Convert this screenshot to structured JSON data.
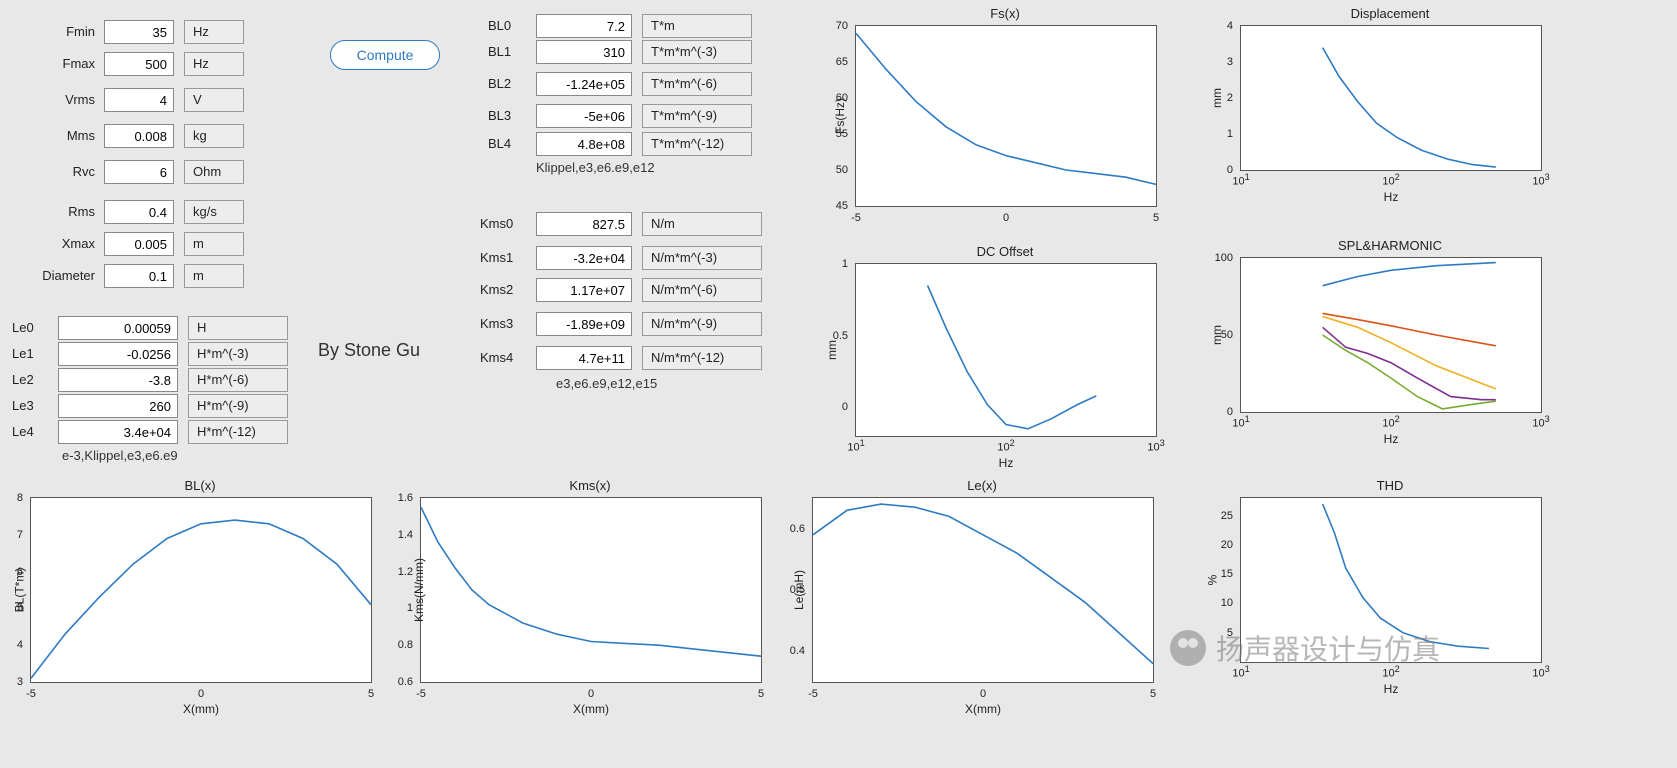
{
  "colors": {
    "line": "#2e7bc4",
    "bg": "#e8e8e8",
    "plotbg": "#ffffff",
    "axis": "#555",
    "grid": "#e0e0e0"
  },
  "compute_label": "Compute",
  "byline": "By  Stone Gu",
  "watermark": "扬声器设计与仿真",
  "params_basic": [
    {
      "label": "Fmin",
      "value": "35",
      "unit": "Hz"
    },
    {
      "label": "Fmax",
      "value": "500",
      "unit": "Hz"
    },
    {
      "label": "Vrms",
      "value": "4",
      "unit": "V"
    },
    {
      "label": "Mms",
      "value": "0.008",
      "unit": "kg"
    },
    {
      "label": "Rvc",
      "value": "6",
      "unit": "Ohm"
    },
    {
      "label": "Rms",
      "value": "0.4",
      "unit": "kg/s"
    },
    {
      "label": "Xmax",
      "value": "0.005",
      "unit": "m"
    },
    {
      "label": "Diameter",
      "value": "0.1",
      "unit": "m"
    }
  ],
  "params_le": [
    {
      "label": "Le0",
      "value": "0.00059",
      "unit": "H"
    },
    {
      "label": "Le1",
      "value": "-0.0256",
      "unit": "H*m^(-3)"
    },
    {
      "label": "Le2",
      "value": "-3.8",
      "unit": "H*m^(-6)"
    },
    {
      "label": "Le3",
      "value": "260",
      "unit": "H*m^(-9)"
    },
    {
      "label": "Le4",
      "value": "3.4e+04",
      "unit": "H*m^(-12)"
    }
  ],
  "note_le": "e-3,Klippel,e3,e6.e9",
  "params_bl": [
    {
      "label": "BL0",
      "value": "7.2",
      "unit": "T*m"
    },
    {
      "label": "BL1",
      "value": "310",
      "unit": "T*m*m^(-3)"
    },
    {
      "label": "BL2",
      "value": "-1.24e+05",
      "unit": "T*m*m^(-6)"
    },
    {
      "label": "BL3",
      "value": "-5e+06",
      "unit": "T*m*m^(-9)"
    },
    {
      "label": "BL4",
      "value": "4.8e+08",
      "unit": "T*m*m^(-12)"
    }
  ],
  "note_bl": "Klippel,e3,e6.e9,e12",
  "params_kms": [
    {
      "label": "Kms0",
      "value": "827.5",
      "unit": "N/m"
    },
    {
      "label": "Kms1",
      "value": "-3.2e+04",
      "unit": "N/m*m^(-3)"
    },
    {
      "label": "Kms2",
      "value": "1.17e+07",
      "unit": "N/m*m^(-6)"
    },
    {
      "label": "Kms3",
      "value": "-1.89e+09",
      "unit": "N/m*m^(-9)"
    },
    {
      "label": "Kms4",
      "value": "4.7e+11",
      "unit": "N/m*m^(-12)"
    }
  ],
  "note_kms": "e3,e6.e9,e12,e15",
  "plots": {
    "fsx": {
      "title": "Fs(x)",
      "xlabel": "",
      "ylabel": "Fs(Hz)",
      "xlim": [
        -5,
        5
      ],
      "ylim": [
        45,
        70
      ],
      "xticks": [
        -5,
        0,
        5
      ],
      "yticks": [
        45,
        50,
        55,
        60,
        65,
        70
      ],
      "series": [
        {
          "color": "#2e7bc4",
          "pts": [
            [
              -5,
              69
            ],
            [
              -4,
              64
            ],
            [
              -3,
              59.5
            ],
            [
              -2,
              56
            ],
            [
              -1,
              53.5
            ],
            [
              0,
              52
            ],
            [
              1,
              51
            ],
            [
              2,
              50
            ],
            [
              3,
              49.5
            ],
            [
              4,
              49
            ],
            [
              5,
              48
            ]
          ]
        }
      ]
    },
    "disp": {
      "title": "Displacement",
      "xlabel": "Hz",
      "ylabel": "mm",
      "xscale": "log",
      "xlim": [
        10,
        1000
      ],
      "ylim": [
        0,
        4
      ],
      "xticks": [
        10,
        100,
        1000
      ],
      "xticklabels": [
        "10^1",
        "10^2",
        "10^3"
      ],
      "yticks": [
        0,
        1,
        2,
        3,
        4
      ],
      "series": [
        {
          "color": "#2e7bc4",
          "pts": [
            [
              35,
              3.4
            ],
            [
              45,
              2.6
            ],
            [
              60,
              1.9
            ],
            [
              80,
              1.3
            ],
            [
              110,
              0.9
            ],
            [
              160,
              0.55
            ],
            [
              240,
              0.3
            ],
            [
              350,
              0.15
            ],
            [
              500,
              0.08
            ]
          ]
        }
      ]
    },
    "dcoff": {
      "title": "DC Offset",
      "xlabel": "Hz",
      "ylabel": "mm",
      "xscale": "log",
      "xlim": [
        10,
        1000
      ],
      "ylim": [
        -0.2,
        1
      ],
      "xticks": [
        10,
        100,
        1000
      ],
      "xticklabels": [
        "10^1",
        "10^2",
        "10^3"
      ],
      "yticks": [
        0,
        0.5,
        1
      ],
      "series": [
        {
          "color": "#2e7bc4",
          "pts": [
            [
              30,
              0.85
            ],
            [
              40,
              0.55
            ],
            [
              55,
              0.25
            ],
            [
              75,
              0.02
            ],
            [
              100,
              -0.12
            ],
            [
              140,
              -0.15
            ],
            [
              200,
              -0.08
            ],
            [
              300,
              0.02
            ],
            [
              400,
              0.08
            ]
          ]
        }
      ]
    },
    "splh": {
      "title": "SPL&HARMONIC",
      "xlabel": "Hz",
      "ylabel": "mm",
      "xscale": "log",
      "xlim": [
        10,
        1000
      ],
      "ylim": [
        0,
        100
      ],
      "xticks": [
        10,
        100,
        1000
      ],
      "xticklabels": [
        "10^1",
        "10^2",
        "10^3"
      ],
      "yticks": [
        0,
        50,
        100
      ],
      "series": [
        {
          "color": "#2e7bc4",
          "pts": [
            [
              35,
              82
            ],
            [
              60,
              88
            ],
            [
              100,
              92
            ],
            [
              200,
              95
            ],
            [
              500,
              97
            ]
          ]
        },
        {
          "color": "#d95319",
          "pts": [
            [
              35,
              64
            ],
            [
              60,
              60
            ],
            [
              100,
              56
            ],
            [
              200,
              50
            ],
            [
              500,
              43
            ]
          ]
        },
        {
          "color": "#edb120",
          "pts": [
            [
              35,
              62
            ],
            [
              60,
              55
            ],
            [
              100,
              45
            ],
            [
              200,
              30
            ],
            [
              500,
              15
            ]
          ]
        },
        {
          "color": "#7e2f8e",
          "pts": [
            [
              35,
              55
            ],
            [
              50,
              42
            ],
            [
              70,
              38
            ],
            [
              100,
              32
            ],
            [
              150,
              22
            ],
            [
              250,
              10
            ],
            [
              400,
              8
            ],
            [
              500,
              8
            ]
          ]
        },
        {
          "color": "#77ac30",
          "pts": [
            [
              35,
              50
            ],
            [
              50,
              40
            ],
            [
              70,
              32
            ],
            [
              100,
              22
            ],
            [
              150,
              10
            ],
            [
              220,
              2
            ],
            [
              350,
              5
            ],
            [
              500,
              7
            ]
          ]
        }
      ]
    },
    "blx": {
      "title": "BL(x)",
      "xlabel": "X(mm)",
      "ylabel": "BL(T*m)",
      "xlim": [
        -5,
        5
      ],
      "ylim": [
        3,
        8
      ],
      "xticks": [
        -5,
        0,
        5
      ],
      "yticks": [
        3,
        4,
        5,
        6,
        7,
        8
      ],
      "series": [
        {
          "color": "#2e7bc4",
          "pts": [
            [
              -5,
              3.1
            ],
            [
              -4,
              4.3
            ],
            [
              -3,
              5.3
            ],
            [
              -2,
              6.2
            ],
            [
              -1,
              6.9
            ],
            [
              0,
              7.3
            ],
            [
              1,
              7.4
            ],
            [
              2,
              7.3
            ],
            [
              3,
              6.9
            ],
            [
              4,
              6.2
            ],
            [
              5,
              5.1
            ]
          ]
        }
      ]
    },
    "kmsx": {
      "title": "Kms(x)",
      "xlabel": "X(mm)",
      "ylabel": "Kms(N/mm)",
      "xlim": [
        -5,
        5
      ],
      "ylim": [
        0.6,
        1.6
      ],
      "xticks": [
        -5,
        0,
        5
      ],
      "yticks": [
        0.6,
        0.8,
        1,
        1.2,
        1.4,
        1.6
      ],
      "series": [
        {
          "color": "#2e7bc4",
          "pts": [
            [
              -5,
              1.55
            ],
            [
              -4.5,
              1.36
            ],
            [
              -4,
              1.22
            ],
            [
              -3.5,
              1.1
            ],
            [
              -3,
              1.02
            ],
            [
              -2,
              0.92
            ],
            [
              -1,
              0.86
            ],
            [
              0,
              0.82
            ],
            [
              1,
              0.81
            ],
            [
              2,
              0.8
            ],
            [
              3,
              0.78
            ],
            [
              4,
              0.76
            ],
            [
              5,
              0.74
            ]
          ]
        }
      ]
    },
    "lex": {
      "title": "Le(x)",
      "xlabel": "X(mm)",
      "ylabel": "Le(mH)",
      "xlim": [
        -5,
        5
      ],
      "ylim": [
        0.35,
        0.65
      ],
      "xticks": [
        -5,
        0,
        5
      ],
      "yticks": [
        0.4,
        0.5,
        0.6
      ],
      "series": [
        {
          "color": "#2e7bc4",
          "pts": [
            [
              -5,
              0.59
            ],
            [
              -4,
              0.63
            ],
            [
              -3,
              0.64
            ],
            [
              -2,
              0.635
            ],
            [
              -1,
              0.62
            ],
            [
              0,
              0.59
            ],
            [
              1,
              0.56
            ],
            [
              2,
              0.52
            ],
            [
              3,
              0.48
            ],
            [
              4,
              0.43
            ],
            [
              5,
              0.38
            ]
          ]
        }
      ]
    },
    "thd": {
      "title": "THD",
      "xlabel": "Hz",
      "ylabel": "%",
      "xscale": "log",
      "xlim": [
        10,
        1000
      ],
      "ylim": [
        0,
        28
      ],
      "xticks": [
        10,
        100,
        1000
      ],
      "xticklabels": [
        "10^1",
        "10^2",
        "10^3"
      ],
      "yticks": [
        5,
        10,
        15,
        20,
        25
      ],
      "series": [
        {
          "color": "#2e7bc4",
          "pts": [
            [
              35,
              27
            ],
            [
              42,
              22
            ],
            [
              50,
              16
            ],
            [
              65,
              11
            ],
            [
              85,
              7.5
            ],
            [
              120,
              5
            ],
            [
              180,
              3.5
            ],
            [
              280,
              2.7
            ],
            [
              450,
              2.3
            ]
          ]
        }
      ]
    }
  }
}
